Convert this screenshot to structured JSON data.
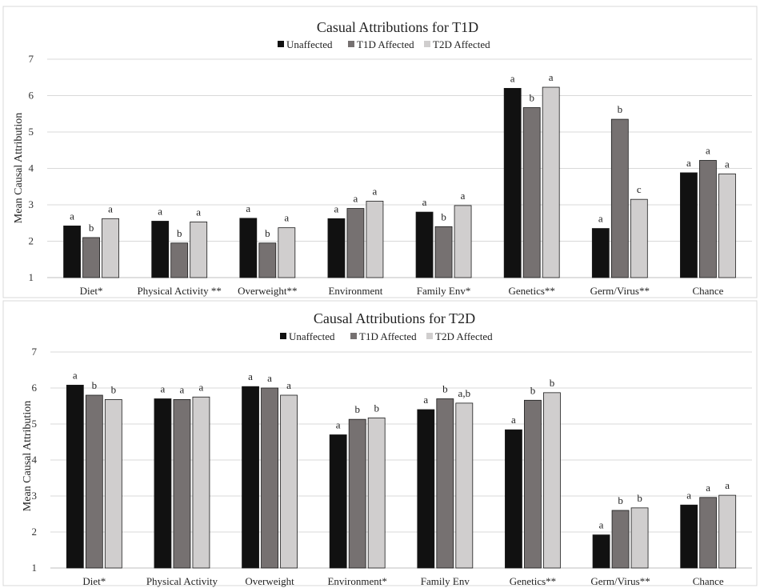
{
  "chart_data": [
    {
      "type": "bar",
      "title": "Casual Attributions for T1D",
      "ylabel": "Mean Causal Attribution",
      "xlabel": "",
      "ylim": [
        1,
        7
      ],
      "yticks": [
        "1",
        "2",
        "3",
        "4",
        "5",
        "6",
        "7"
      ],
      "grid": true,
      "legend_position": "top-center",
      "categories": [
        "Diet*",
        "Physical Activity **",
        "Overweight**",
        "Environment",
        "Family Env*",
        "Genetics**",
        "Germ/Virus**",
        "Chance"
      ],
      "series": [
        {
          "name": "Unaffected",
          "color": "#111111",
          "values": [
            2.42,
            2.55,
            2.63,
            2.62,
            2.8,
            6.2,
            2.35,
            3.88
          ],
          "labels": [
            "a",
            "a",
            "a",
            "a",
            "a",
            "a",
            "a",
            "a"
          ]
        },
        {
          "name": "T1D Affected",
          "color": "#767171",
          "values": [
            2.1,
            1.95,
            1.95,
            2.9,
            2.4,
            5.67,
            5.35,
            4.22
          ],
          "labels": [
            "b",
            "b",
            "b",
            "a",
            "b",
            "b",
            "b",
            "a"
          ]
        },
        {
          "name": "T2D Affected",
          "color": "#d0cece",
          "values": [
            2.62,
            2.53,
            2.37,
            3.1,
            2.98,
            6.23,
            3.15,
            3.85
          ],
          "labels": [
            "a",
            "a",
            "a",
            "a",
            "a",
            "a",
            "c",
            "a"
          ]
        }
      ]
    },
    {
      "type": "bar",
      "title": "Causal Attributions for T2D",
      "ylabel": "Mean Causal Attribution",
      "xlabel": "",
      "ylim": [
        1,
        7
      ],
      "yticks": [
        "1",
        "2",
        "3",
        "4",
        "5",
        "6",
        "7"
      ],
      "grid": true,
      "legend_position": "top-center",
      "categories": [
        "Diet*",
        "Physical Activity",
        "Overweight",
        "Environment*",
        "Family Env",
        "Genetics**",
        "Germ/Virus**",
        "Chance"
      ],
      "series": [
        {
          "name": "Unaffected",
          "color": "#111111",
          "values": [
            6.08,
            5.7,
            6.04,
            4.7,
            5.4,
            4.84,
            1.92,
            2.75
          ],
          "labels": [
            "a",
            "a",
            "a",
            "a",
            "a",
            "a",
            "a",
            "a"
          ]
        },
        {
          "name": "T1D Affected",
          "color": "#767171",
          "values": [
            5.8,
            5.68,
            6.0,
            5.13,
            5.7,
            5.66,
            2.6,
            2.96
          ],
          "labels": [
            "b",
            "a",
            "a",
            "b",
            "b",
            "b",
            "b",
            "a"
          ]
        },
        {
          "name": "T2D Affected",
          "color": "#d0cece",
          "values": [
            5.68,
            5.75,
            5.8,
            5.17,
            5.58,
            5.87,
            2.67,
            3.02
          ],
          "labels": [
            "b",
            "a",
            "a",
            "b",
            "a,b",
            "b",
            "b",
            "a"
          ]
        }
      ]
    }
  ]
}
